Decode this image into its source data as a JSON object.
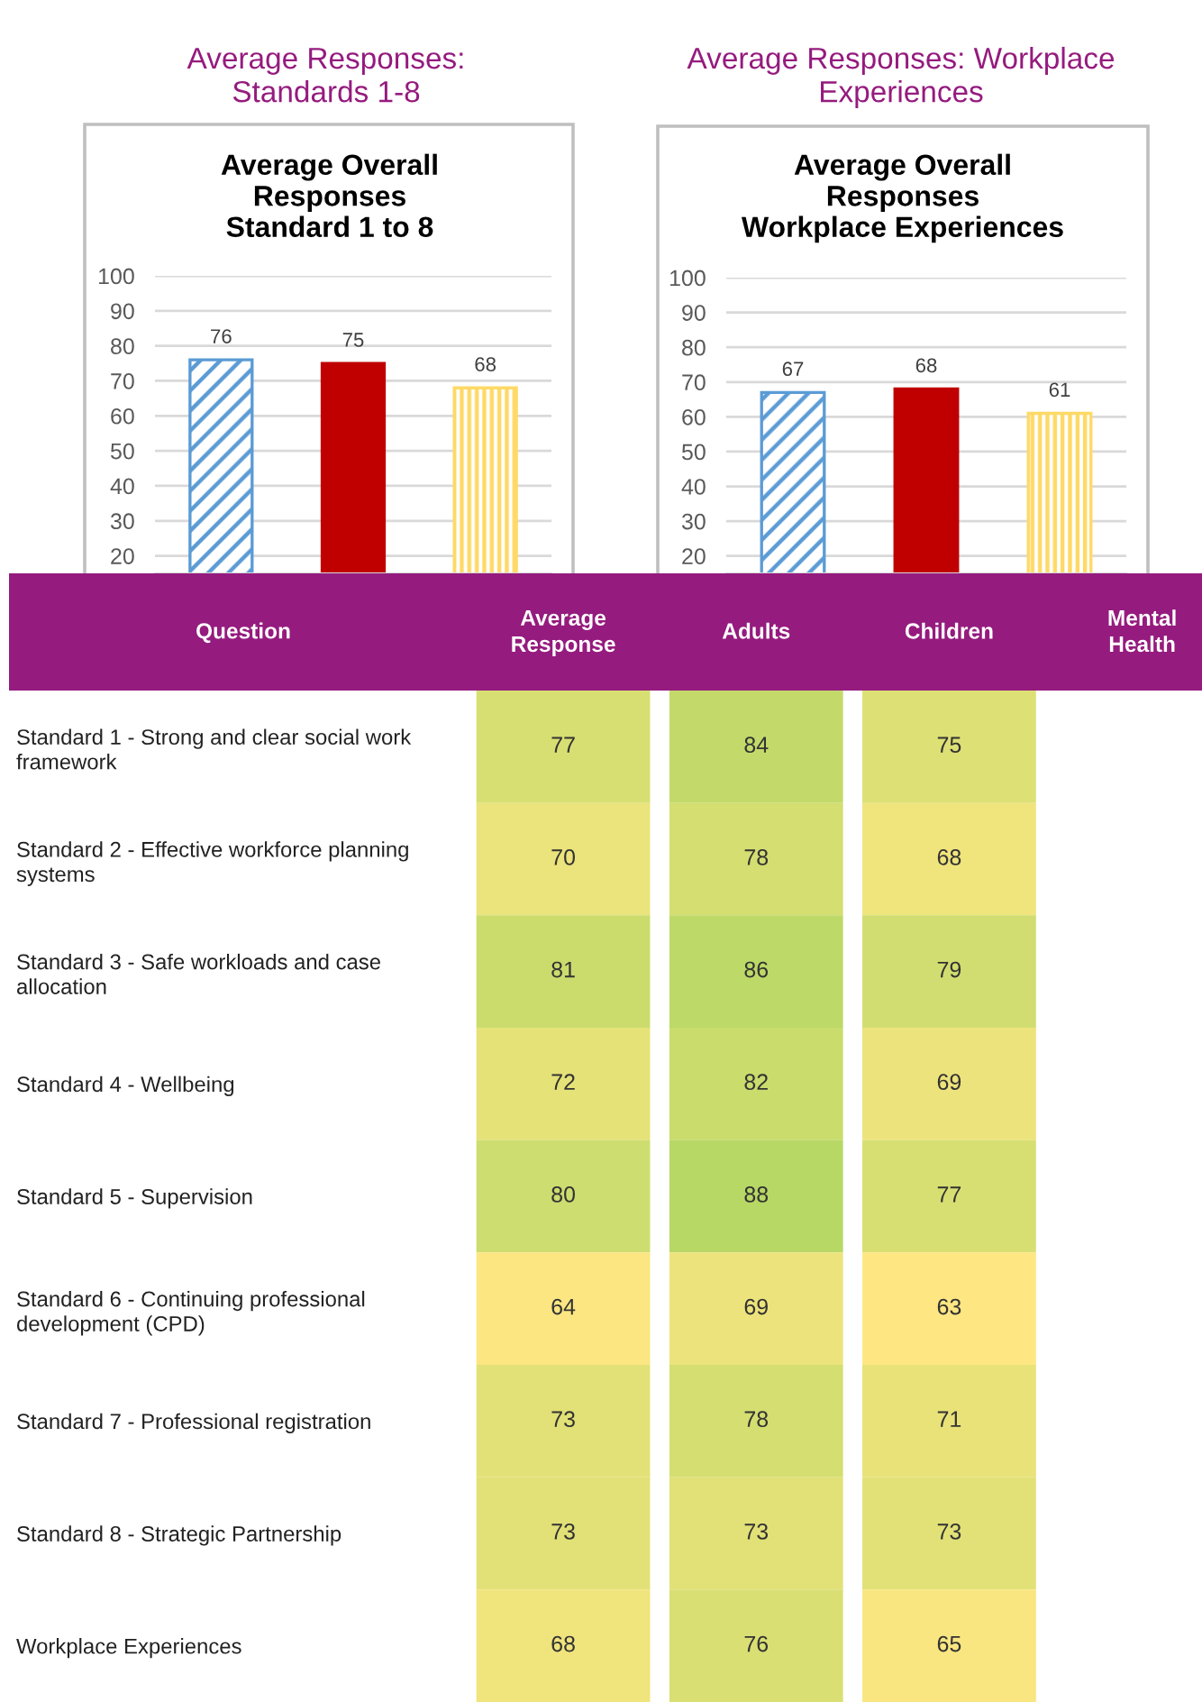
{
  "chart_data": [
    {
      "type": "bar",
      "title": "Average Responses:\nStandards 1-8",
      "subtitle": "Average Overall\nResponses\nStandard 1 to 8",
      "categories": [
        null,
        null,
        null
      ],
      "values": [
        76,
        75,
        68
      ],
      "colors": [
        "#5b9bd5",
        "#c00000",
        "#ffd966"
      ],
      "ylim": [
        15,
        100
      ],
      "yticks": [
        20,
        30,
        40,
        50,
        60,
        70,
        80,
        90,
        100
      ],
      "grid": "y",
      "data_labels": true,
      "tick_labels": "y"
    },
    {
      "type": "bar",
      "title": "Average Responses: Workplace\nExperiences",
      "subtitle": "Average Overall\nResponses\nWorkplace Experiences",
      "categories": [
        null,
        null,
        null
      ],
      "values": [
        67,
        68,
        61
      ],
      "colors": [
        "#5b9bd5",
        "#c00000",
        "#ffd966"
      ],
      "ylim": [
        15,
        100
      ],
      "yticks": [
        20,
        30,
        40,
        50,
        60,
        70,
        80,
        90,
        100
      ],
      "grid": "y",
      "data_labels": true,
      "tick_labels": "y"
    },
    {
      "type": "heatmap",
      "ylabel": "Question",
      "categories": [
        "Average\nResponse",
        "Adults",
        "Children",
        "Mental\nHealth"
      ],
      "y_categories": [
        "Standard 1 - Strong and clear social work\nframework",
        "Standard 2 - Effective workforce planning\nsystems",
        "Standard 3 - Safe workloads and case\nallocation",
        "Standard 4 - Wellbeing",
        "Standard 5 - Supervision",
        "Standard 6 - Continuing professional\ndevelopment (CPD)",
        "Standard 7 - Professional registration",
        "Standard 8 - Strategic Partnership",
        "Workplace Experiences"
      ],
      "cells": [
        [
          77,
          84,
          75,
          null
        ],
        [
          70,
          78,
          68,
          null
        ],
        [
          81,
          86,
          79,
          null
        ],
        [
          72,
          82,
          69,
          null
        ],
        [
          80,
          88,
          77,
          null
        ],
        [
          64,
          69,
          63,
          null
        ],
        [
          73,
          78,
          71,
          null
        ],
        [
          73,
          73,
          73,
          null
        ],
        [
          68,
          76,
          65,
          null
        ]
      ],
      "data_labels": true
    }
  ]
}
